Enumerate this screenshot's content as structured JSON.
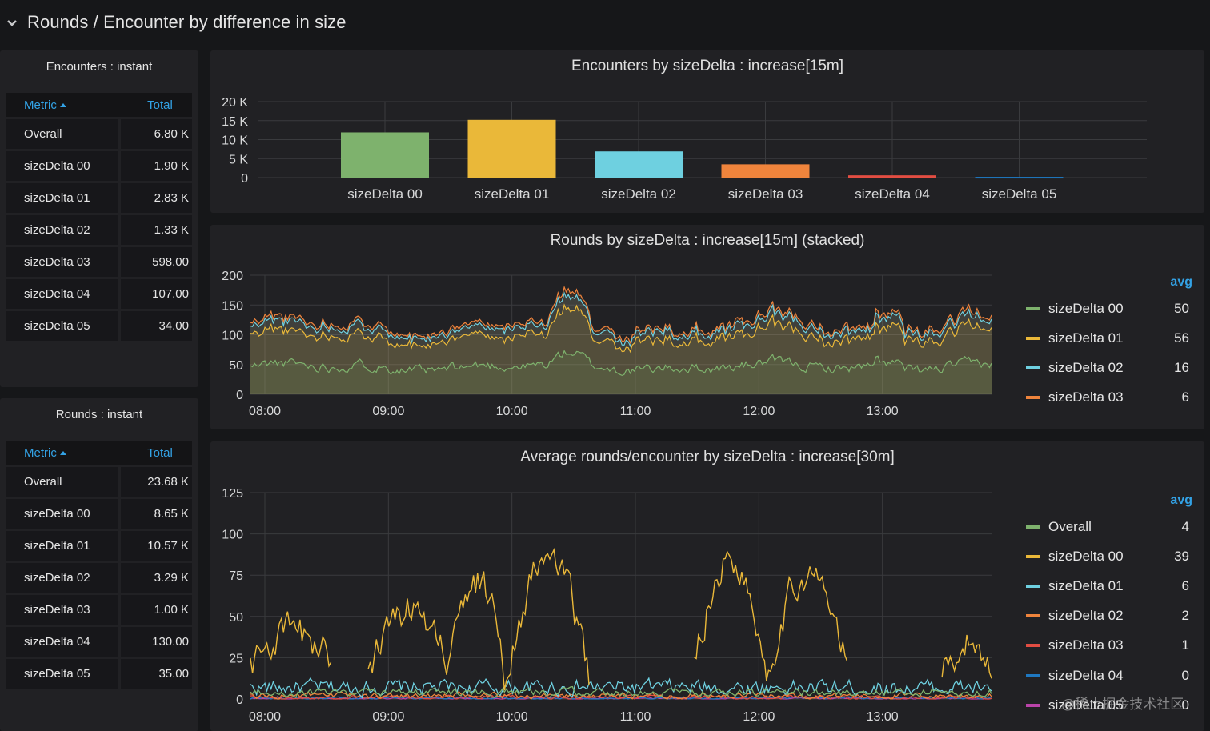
{
  "row": {
    "title": "Rounds / Encounter by difference in size"
  },
  "encounters_table": {
    "title": "Encounters : instant",
    "col_metric": "Metric",
    "col_total": "Total",
    "rows": [
      {
        "metric": "Overall",
        "total": "6.80 K"
      },
      {
        "metric": "sizeDelta 00",
        "total": "1.90 K"
      },
      {
        "metric": "sizeDelta 01",
        "total": "2.83 K"
      },
      {
        "metric": "sizeDelta 02",
        "total": "1.33 K"
      },
      {
        "metric": "sizeDelta 03",
        "total": "598.00"
      },
      {
        "metric": "sizeDelta 04",
        "total": "107.00"
      },
      {
        "metric": "sizeDelta 05",
        "total": "34.00"
      }
    ]
  },
  "rounds_table": {
    "title": "Rounds : instant",
    "col_metric": "Metric",
    "col_total": "Total",
    "rows": [
      {
        "metric": "Overall",
        "total": "23.68 K"
      },
      {
        "metric": "sizeDelta 00",
        "total": "8.65 K"
      },
      {
        "metric": "sizeDelta 01",
        "total": "10.57 K"
      },
      {
        "metric": "sizeDelta 02",
        "total": "3.29 K"
      },
      {
        "metric": "sizeDelta 03",
        "total": "1.00 K"
      },
      {
        "metric": "sizeDelta 04",
        "total": "130.00"
      },
      {
        "metric": "sizeDelta 05",
        "total": "35.00"
      }
    ]
  },
  "colors": {
    "green": "#7eb26d",
    "yellow": "#eab839",
    "cyan": "#6ed0e0",
    "orange": "#ef843c",
    "red": "#e24d42",
    "blue": "#1f78c1",
    "purple": "#ba43a9",
    "accent": "#33a2e5"
  },
  "chart_data": [
    {
      "type": "bar",
      "title": "Encounters by sizeDelta : increase[15m]",
      "categories": [
        "sizeDelta 00",
        "sizeDelta 01",
        "sizeDelta 02",
        "sizeDelta 03",
        "sizeDelta 04",
        "sizeDelta 05"
      ],
      "values": [
        11900,
        15200,
        6900,
        3500,
        600,
        200
      ],
      "bar_colors": [
        "#7eb26d",
        "#eab839",
        "#6ed0e0",
        "#ef843c",
        "#e24d42",
        "#1f78c1"
      ],
      "ylim": [
        0,
        20000
      ],
      "yticks": [
        "20 K",
        "15 K",
        "10 K",
        "5 K",
        "0"
      ]
    },
    {
      "type": "area",
      "stacked": true,
      "title": "Rounds by sizeDelta : increase[15m] (stacked)",
      "x_range": [
        "07:53",
        "13:53"
      ],
      "xticks": [
        "08:00",
        "09:00",
        "10:00",
        "11:00",
        "12:00",
        "13:00"
      ],
      "ylim": [
        0,
        200
      ],
      "yticks": [
        "200",
        "150",
        "100",
        "50",
        "0"
      ],
      "legend_header": "avg",
      "series": [
        {
          "name": "sizeDelta 00",
          "avg": "50",
          "color": "#7eb26d"
        },
        {
          "name": "sizeDelta 01",
          "avg": "56",
          "color": "#eab839"
        },
        {
          "name": "sizeDelta 02",
          "avg": "16",
          "color": "#6ed0e0"
        },
        {
          "name": "sizeDelta 03",
          "avg": "6",
          "color": "#ef843c"
        }
      ]
    },
    {
      "type": "line",
      "title": "Average rounds/encounter by sizeDelta : increase[30m]",
      "x_range": [
        "07:53",
        "13:53"
      ],
      "xticks": [
        "08:00",
        "09:00",
        "10:00",
        "11:00",
        "12:00",
        "13:00"
      ],
      "ylim": [
        0,
        125
      ],
      "yticks": [
        "125",
        "100",
        "75",
        "50",
        "25",
        "0"
      ],
      "legend_header": "avg",
      "series": [
        {
          "name": "Overall",
          "avg": "4",
          "color": "#7eb26d"
        },
        {
          "name": "sizeDelta 00",
          "avg": "39",
          "color": "#eab839"
        },
        {
          "name": "sizeDelta 01",
          "avg": "6",
          "color": "#6ed0e0"
        },
        {
          "name": "sizeDelta 02",
          "avg": "2",
          "color": "#ef843c"
        },
        {
          "name": "sizeDelta 03",
          "avg": "1",
          "color": "#e24d42"
        },
        {
          "name": "sizeDelta 04",
          "avg": "0",
          "color": "#1f78c1"
        },
        {
          "name": "sizeDelta 05",
          "avg": "0",
          "color": "#ba43a9"
        }
      ]
    }
  ],
  "watermark": "@稀土掘金技术社区"
}
